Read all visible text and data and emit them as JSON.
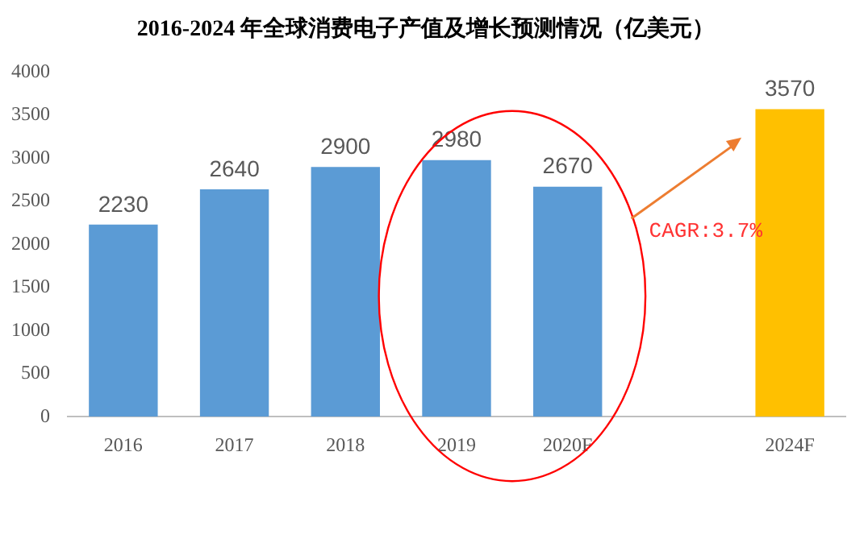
{
  "chart_data": {
    "type": "bar",
    "title": "2016-2024 年全球消费电子产值及增长预测情况（亿美元）",
    "categories": [
      "2016",
      "2017",
      "2018",
      "2019",
      "2020F",
      null,
      "2024F"
    ],
    "values": [
      2230,
      2640,
      2900,
      2980,
      2670,
      null,
      3570
    ],
    "colors": [
      "#5b9bd5",
      "#5b9bd5",
      "#5b9bd5",
      "#5b9bd5",
      "#5b9bd5",
      "#5b9bd5",
      "#ffc000"
    ],
    "ylim": [
      0,
      4000
    ],
    "yticks": [
      0,
      500,
      1000,
      1500,
      2000,
      2500,
      3000,
      3500,
      4000
    ],
    "grid": false,
    "legend": false,
    "data_labels": true,
    "annotations": [
      "CAGR:3.7%"
    ]
  }
}
